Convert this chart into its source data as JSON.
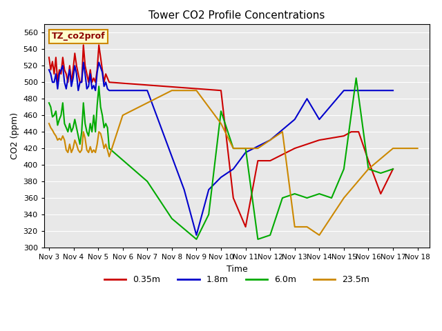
{
  "title": "Tower CO2 Profile Concentrations",
  "xlabel": "Time",
  "ylabel": "CO2 (ppm)",
  "ylim": [
    300,
    570
  ],
  "yticks": [
    300,
    320,
    340,
    360,
    380,
    400,
    420,
    440,
    460,
    480,
    500,
    520,
    540,
    560
  ],
  "xtick_labels": [
    "Nov 3",
    "Nov 4",
    "Nov 5",
    "Nov 6",
    "Nov 7",
    "Nov 8",
    "Nov 9",
    "Nov 10",
    "Nov 11",
    "Nov 12",
    "Nov 13",
    "Nov 14",
    "Nov 15",
    "Nov 16",
    "Nov 17",
    "Nov 18"
  ],
  "xtick_values": [
    3,
    4,
    5,
    6,
    7,
    8,
    9,
    10,
    11,
    12,
    13,
    14,
    15,
    16,
    17,
    18
  ],
  "xlim": [
    2.8,
    18.5
  ],
  "annotation_text": "TZ_co2prof",
  "bg_color": "#e8e8e8",
  "series": [
    {
      "label": "0.35m",
      "color": "#cc0000",
      "x": [
        3.0,
        3.07,
        3.14,
        3.21,
        3.28,
        3.35,
        3.42,
        3.49,
        3.56,
        3.63,
        3.7,
        3.77,
        3.84,
        3.91,
        3.98,
        4.05,
        4.12,
        4.19,
        4.26,
        4.33,
        4.4,
        4.47,
        4.54,
        4.61,
        4.68,
        4.75,
        4.82,
        4.89,
        4.96,
        5.03,
        5.1,
        5.17,
        5.24,
        5.31,
        5.38,
        5.45,
        10.0,
        10.5,
        11.0,
        11.5,
        12.0,
        13.0,
        14.0,
        15.0,
        15.3,
        15.6,
        16.0,
        16.5,
        17.0
      ],
      "y": [
        530,
        515,
        525,
        510,
        530,
        500,
        515,
        510,
        530,
        515,
        510,
        500,
        520,
        500,
        515,
        535,
        520,
        510,
        500,
        500,
        545,
        520,
        510,
        500,
        515,
        500,
        505,
        500,
        515,
        545,
        530,
        515,
        500,
        510,
        505,
        500,
        490,
        360,
        325,
        405,
        405,
        420,
        430,
        435,
        440,
        440,
        405,
        365,
        395
      ]
    },
    {
      "label": "1.8m",
      "color": "#0000cc",
      "x": [
        3.0,
        3.07,
        3.14,
        3.21,
        3.28,
        3.35,
        3.42,
        3.49,
        3.56,
        3.63,
        3.7,
        3.77,
        3.84,
        3.91,
        3.98,
        4.05,
        4.12,
        4.19,
        4.26,
        4.33,
        4.4,
        4.47,
        4.54,
        4.61,
        4.68,
        4.75,
        4.82,
        4.89,
        4.96,
        5.03,
        5.1,
        5.17,
        5.24,
        5.31,
        5.38,
        5.45,
        7.0,
        8.5,
        9.0,
        9.5,
        10.0,
        10.5,
        11.0,
        12.0,
        13.0,
        13.5,
        14.0,
        15.0,
        16.0,
        17.0
      ],
      "y": [
        515,
        510,
        500,
        500,
        510,
        492,
        510,
        515,
        520,
        500,
        492,
        505,
        515,
        495,
        505,
        520,
        510,
        490,
        500,
        500,
        524,
        510,
        492,
        495,
        510,
        492,
        496,
        490,
        512,
        524,
        518,
        512,
        495,
        500,
        492,
        490,
        490,
        370,
        315,
        370,
        385,
        395,
        415,
        430,
        455,
        480,
        455,
        490,
        490,
        490
      ]
    },
    {
      "label": "6.0m",
      "color": "#00aa00",
      "x": [
        3.0,
        3.07,
        3.14,
        3.21,
        3.28,
        3.35,
        3.42,
        3.49,
        3.56,
        3.63,
        3.7,
        3.77,
        3.84,
        3.91,
        3.98,
        4.05,
        4.12,
        4.19,
        4.26,
        4.33,
        4.4,
        4.47,
        4.54,
        4.61,
        4.68,
        4.75,
        4.82,
        4.89,
        4.96,
        5.03,
        5.1,
        5.17,
        5.24,
        5.31,
        5.38,
        5.45,
        7.0,
        8.0,
        9.0,
        9.5,
        10.0,
        10.5,
        11.0,
        11.5,
        12.0,
        12.5,
        13.0,
        13.5,
        14.0,
        14.5,
        15.0,
        15.5,
        16.0,
        16.5,
        17.0
      ],
      "y": [
        475,
        470,
        458,
        460,
        465,
        448,
        455,
        460,
        475,
        450,
        445,
        440,
        450,
        440,
        445,
        455,
        445,
        435,
        425,
        440,
        475,
        450,
        440,
        435,
        450,
        440,
        460,
        440,
        472,
        495,
        470,
        460,
        445,
        450,
        445,
        420,
        380,
        335,
        310,
        340,
        465,
        420,
        420,
        310,
        315,
        360,
        365,
        360,
        365,
        360,
        395,
        505,
        395,
        390,
        395
      ]
    },
    {
      "label": "23.5m",
      "color": "#cc8800",
      "x": [
        3.0,
        3.07,
        3.14,
        3.21,
        3.28,
        3.35,
        3.42,
        3.49,
        3.56,
        3.63,
        3.7,
        3.77,
        3.84,
        3.91,
        3.98,
        4.05,
        4.12,
        4.19,
        4.26,
        4.33,
        4.4,
        4.47,
        4.54,
        4.61,
        4.68,
        4.75,
        4.82,
        4.89,
        4.96,
        5.03,
        5.1,
        5.17,
        5.24,
        5.31,
        5.38,
        5.45,
        6.0,
        8.0,
        9.0,
        10.0,
        10.5,
        11.0,
        11.5,
        12.5,
        13.0,
        13.5,
        14.0,
        15.0,
        16.0,
        17.0,
        18.0
      ],
      "y": [
        450,
        445,
        442,
        438,
        435,
        430,
        432,
        430,
        435,
        430,
        418,
        415,
        425,
        415,
        420,
        430,
        425,
        418,
        415,
        418,
        440,
        432,
        418,
        415,
        422,
        415,
        418,
        415,
        425,
        440,
        438,
        430,
        420,
        425,
        418,
        410,
        460,
        490,
        490,
        450,
        420,
        420,
        420,
        440,
        325,
        325,
        315,
        360,
        395,
        420,
        420
      ]
    }
  ],
  "legend_labels": [
    "0.35m",
    "1.8m",
    "6.0m",
    "23.5m"
  ],
  "legend_colors": [
    "#cc0000",
    "#0000cc",
    "#00aa00",
    "#cc8800"
  ]
}
